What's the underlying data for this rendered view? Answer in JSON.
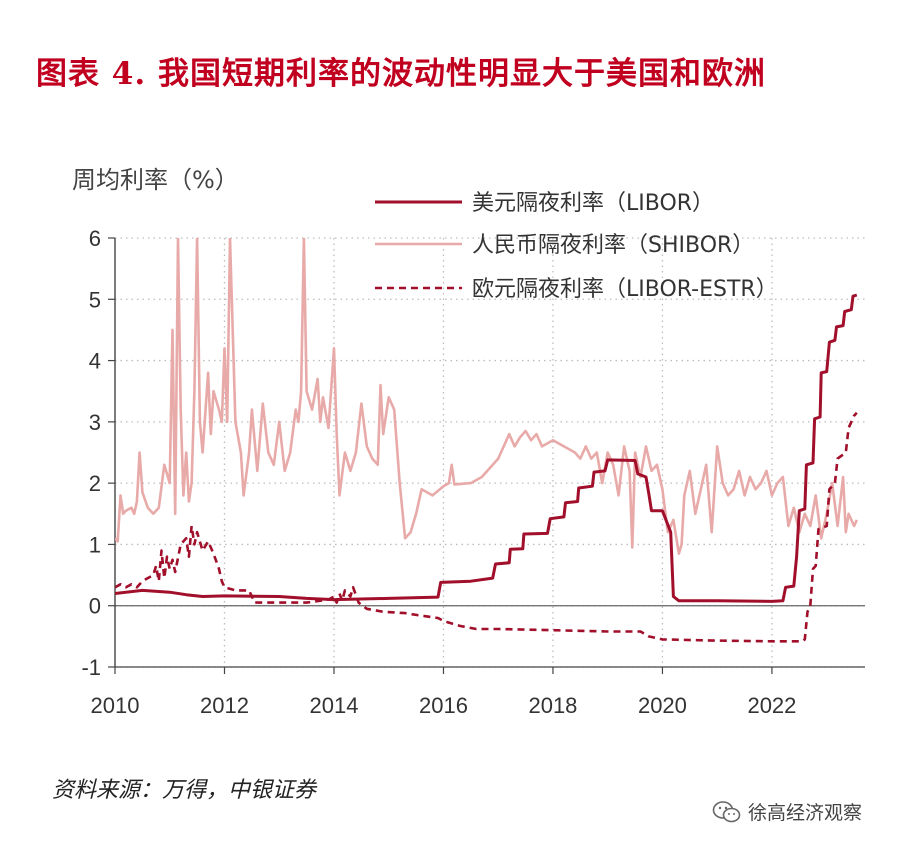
{
  "header": {
    "title": "图表 4. 我国短期利率的波动性明显大于美国和欧洲"
  },
  "footer": {
    "source": "资料来源：万得，中银证券",
    "watermark": "徐高经济观察"
  },
  "colors": {
    "title": "#c0001e",
    "usd": "#a10f2b",
    "shibor": "#e8aaa8",
    "eur": "#a10f2b",
    "grid": "#bdbdbd"
  },
  "chart_data": {
    "type": "line",
    "title": "",
    "ylabel": "周均利率（%）",
    "xlabel": "",
    "xlim": [
      2010,
      2023.7
    ],
    "ylim": [
      -1,
      6
    ],
    "x_ticks": [
      "2010",
      "2012",
      "2014",
      "2016",
      "2018",
      "2020",
      "2022"
    ],
    "y_ticks": [
      "-1",
      "0",
      "1",
      "2",
      "3",
      "4",
      "5",
      "6"
    ],
    "grid": "dotted",
    "legend_position": "top-right",
    "series": [
      {
        "name": "美元隔夜利率（LIBOR）",
        "style": "solid",
        "points": [
          [
            2010.0,
            0.2
          ],
          [
            2010.5,
            0.25
          ],
          [
            2011.0,
            0.22
          ],
          [
            2011.3,
            0.18
          ],
          [
            2011.6,
            0.15
          ],
          [
            2012.0,
            0.16
          ],
          [
            2013.0,
            0.15
          ],
          [
            2013.5,
            0.12
          ],
          [
            2014.0,
            0.1
          ],
          [
            2015.0,
            0.12
          ],
          [
            2015.9,
            0.14
          ],
          [
            2015.95,
            0.38
          ],
          [
            2016.5,
            0.4
          ],
          [
            2016.9,
            0.45
          ],
          [
            2016.95,
            0.68
          ],
          [
            2017.2,
            0.7
          ],
          [
            2017.22,
            0.92
          ],
          [
            2017.45,
            0.93
          ],
          [
            2017.47,
            1.17
          ],
          [
            2017.9,
            1.18
          ],
          [
            2017.95,
            1.42
          ],
          [
            2018.2,
            1.45
          ],
          [
            2018.23,
            1.68
          ],
          [
            2018.45,
            1.7
          ],
          [
            2018.47,
            1.92
          ],
          [
            2018.72,
            1.95
          ],
          [
            2018.75,
            2.18
          ],
          [
            2018.95,
            2.2
          ],
          [
            2019.0,
            2.38
          ],
          [
            2019.5,
            2.37
          ],
          [
            2019.55,
            2.15
          ],
          [
            2019.7,
            2.1
          ],
          [
            2019.75,
            1.83
          ],
          [
            2019.8,
            1.55
          ],
          [
            2020.0,
            1.55
          ],
          [
            2020.15,
            1.2
          ],
          [
            2020.2,
            0.15
          ],
          [
            2020.3,
            0.08
          ],
          [
            2021.0,
            0.08
          ],
          [
            2022.0,
            0.07
          ],
          [
            2022.2,
            0.08
          ],
          [
            2022.25,
            0.3
          ],
          [
            2022.4,
            0.32
          ],
          [
            2022.45,
            0.8
          ],
          [
            2022.5,
            1.55
          ],
          [
            2022.6,
            1.58
          ],
          [
            2022.63,
            2.3
          ],
          [
            2022.75,
            2.33
          ],
          [
            2022.78,
            3.05
          ],
          [
            2022.88,
            3.08
          ],
          [
            2022.9,
            3.8
          ],
          [
            2023.0,
            3.82
          ],
          [
            2023.05,
            4.3
          ],
          [
            2023.15,
            4.33
          ],
          [
            2023.18,
            4.55
          ],
          [
            2023.3,
            4.57
          ],
          [
            2023.33,
            4.8
          ],
          [
            2023.45,
            4.83
          ],
          [
            2023.48,
            5.05
          ],
          [
            2023.55,
            5.07
          ]
        ]
      },
      {
        "name": "人民币隔夜利率（SHIBOR）",
        "style": "solid",
        "points": [
          [
            2010.0,
            1.1
          ],
          [
            2010.05,
            1.05
          ],
          [
            2010.1,
            1.8
          ],
          [
            2010.15,
            1.5
          ],
          [
            2010.2,
            1.55
          ],
          [
            2010.3,
            1.6
          ],
          [
            2010.35,
            1.5
          ],
          [
            2010.4,
            1.7
          ],
          [
            2010.45,
            2.5
          ],
          [
            2010.5,
            1.85
          ],
          [
            2010.6,
            1.6
          ],
          [
            2010.7,
            1.5
          ],
          [
            2010.8,
            1.6
          ],
          [
            2010.9,
            2.3
          ],
          [
            2011.0,
            2.0
          ],
          [
            2011.05,
            4.5
          ],
          [
            2011.1,
            1.5
          ],
          [
            2011.15,
            6.0
          ],
          [
            2011.2,
            3.2
          ],
          [
            2011.25,
            1.8
          ],
          [
            2011.3,
            2.5
          ],
          [
            2011.35,
            1.7
          ],
          [
            2011.4,
            2.0
          ],
          [
            2011.45,
            3.5
          ],
          [
            2011.5,
            6.0
          ],
          [
            2011.55,
            3.0
          ],
          [
            2011.6,
            2.5
          ],
          [
            2011.7,
            3.8
          ],
          [
            2011.75,
            2.8
          ],
          [
            2011.8,
            3.5
          ],
          [
            2011.9,
            3.2
          ],
          [
            2011.95,
            3.0
          ],
          [
            2012.0,
            4.2
          ],
          [
            2012.05,
            3.0
          ],
          [
            2012.1,
            6.0
          ],
          [
            2012.15,
            4.5
          ],
          [
            2012.2,
            3.0
          ],
          [
            2012.3,
            2.5
          ],
          [
            2012.35,
            1.8
          ],
          [
            2012.45,
            2.5
          ],
          [
            2012.5,
            3.2
          ],
          [
            2012.6,
            2.2
          ],
          [
            2012.7,
            3.3
          ],
          [
            2012.8,
            2.5
          ],
          [
            2012.9,
            2.3
          ],
          [
            2013.0,
            3.0
          ],
          [
            2013.1,
            2.2
          ],
          [
            2013.2,
            2.5
          ],
          [
            2013.3,
            3.2
          ],
          [
            2013.35,
            3.0
          ],
          [
            2013.4,
            3.5
          ],
          [
            2013.45,
            6.0
          ],
          [
            2013.5,
            3.5
          ],
          [
            2013.6,
            3.2
          ],
          [
            2013.7,
            3.7
          ],
          [
            2013.75,
            3.0
          ],
          [
            2013.8,
            3.4
          ],
          [
            2013.9,
            2.9
          ],
          [
            2014.0,
            4.2
          ],
          [
            2014.05,
            2.8
          ],
          [
            2014.1,
            1.8
          ],
          [
            2014.2,
            2.5
          ],
          [
            2014.3,
            2.2
          ],
          [
            2014.4,
            2.5
          ],
          [
            2014.5,
            3.3
          ],
          [
            2014.6,
            2.6
          ],
          [
            2014.7,
            2.4
          ],
          [
            2014.8,
            2.3
          ],
          [
            2014.85,
            3.6
          ],
          [
            2014.9,
            2.8
          ],
          [
            2015.0,
            3.4
          ],
          [
            2015.1,
            3.2
          ],
          [
            2015.2,
            2.0
          ],
          [
            2015.3,
            1.1
          ],
          [
            2015.4,
            1.2
          ],
          [
            2015.5,
            1.5
          ],
          [
            2015.6,
            1.9
          ],
          [
            2015.7,
            1.85
          ],
          [
            2015.8,
            1.8
          ],
          [
            2016.0,
            1.95
          ],
          [
            2016.1,
            2.0
          ],
          [
            2016.15,
            2.3
          ],
          [
            2016.2,
            1.98
          ],
          [
            2016.5,
            2.0
          ],
          [
            2016.7,
            2.1
          ],
          [
            2016.8,
            2.2
          ],
          [
            2016.9,
            2.3
          ],
          [
            2017.0,
            2.4
          ],
          [
            2017.1,
            2.6
          ],
          [
            2017.2,
            2.8
          ],
          [
            2017.3,
            2.6
          ],
          [
            2017.4,
            2.75
          ],
          [
            2017.5,
            2.85
          ],
          [
            2017.6,
            2.7
          ],
          [
            2017.7,
            2.8
          ],
          [
            2017.8,
            2.6
          ],
          [
            2018.0,
            2.7
          ],
          [
            2018.2,
            2.6
          ],
          [
            2018.4,
            2.5
          ],
          [
            2018.5,
            2.4
          ],
          [
            2018.6,
            2.6
          ],
          [
            2018.7,
            2.4
          ],
          [
            2018.8,
            2.5
          ],
          [
            2018.9,
            2.0
          ],
          [
            2019.0,
            2.5
          ],
          [
            2019.1,
            2.3
          ],
          [
            2019.2,
            1.8
          ],
          [
            2019.3,
            2.6
          ],
          [
            2019.4,
            2.2
          ],
          [
            2019.45,
            0.95
          ],
          [
            2019.5,
            2.5
          ],
          [
            2019.6,
            2.1
          ],
          [
            2019.7,
            2.6
          ],
          [
            2019.8,
            2.2
          ],
          [
            2019.9,
            2.3
          ],
          [
            2020.0,
            1.9
          ],
          [
            2020.1,
            1.2
          ],
          [
            2020.2,
            1.4
          ],
          [
            2020.3,
            0.85
          ],
          [
            2020.35,
            1.0
          ],
          [
            2020.4,
            1.8
          ],
          [
            2020.5,
            2.2
          ],
          [
            2020.6,
            1.5
          ],
          [
            2020.7,
            1.9
          ],
          [
            2020.8,
            2.3
          ],
          [
            2020.9,
            1.2
          ],
          [
            2021.0,
            2.6
          ],
          [
            2021.1,
            2.0
          ],
          [
            2021.2,
            1.8
          ],
          [
            2021.3,
            1.9
          ],
          [
            2021.4,
            2.2
          ],
          [
            2021.5,
            1.8
          ],
          [
            2021.6,
            2.1
          ],
          [
            2021.7,
            1.9
          ],
          [
            2021.8,
            2.0
          ],
          [
            2021.9,
            2.2
          ],
          [
            2022.0,
            1.8
          ],
          [
            2022.1,
            2.0
          ],
          [
            2022.2,
            2.1
          ],
          [
            2022.3,
            1.3
          ],
          [
            2022.4,
            1.6
          ],
          [
            2022.5,
            1.2
          ],
          [
            2022.6,
            1.5
          ],
          [
            2022.7,
            1.3
          ],
          [
            2022.8,
            1.8
          ],
          [
            2022.9,
            1.1
          ],
          [
            2023.0,
            1.5
          ],
          [
            2023.1,
            2.0
          ],
          [
            2023.2,
            1.3
          ],
          [
            2023.3,
            2.1
          ],
          [
            2023.35,
            1.2
          ],
          [
            2023.4,
            1.5
          ],
          [
            2023.5,
            1.3
          ],
          [
            2023.55,
            1.4
          ]
        ]
      },
      {
        "name": "欧元隔夜利率（LIBOR-ESTR）",
        "style": "dashed",
        "points": [
          [
            2010.0,
            0.3
          ],
          [
            2010.1,
            0.35
          ],
          [
            2010.2,
            0.3
          ],
          [
            2010.3,
            0.35
          ],
          [
            2010.4,
            0.3
          ],
          [
            2010.5,
            0.4
          ],
          [
            2010.6,
            0.45
          ],
          [
            2010.7,
            0.5
          ],
          [
            2010.75,
            0.65
          ],
          [
            2010.8,
            0.4
          ],
          [
            2010.85,
            0.9
          ],
          [
            2010.9,
            0.45
          ],
          [
            2010.95,
            0.8
          ],
          [
            2011.0,
            0.6
          ],
          [
            2011.05,
            0.75
          ],
          [
            2011.1,
            0.55
          ],
          [
            2011.2,
            1.0
          ],
          [
            2011.3,
            1.1
          ],
          [
            2011.35,
            0.8
          ],
          [
            2011.4,
            1.3
          ],
          [
            2011.45,
            1.0
          ],
          [
            2011.5,
            1.2
          ],
          [
            2011.6,
            0.9
          ],
          [
            2011.7,
            1.05
          ],
          [
            2011.8,
            0.85
          ],
          [
            2011.9,
            0.6
          ],
          [
            2011.95,
            0.4
          ],
          [
            2012.0,
            0.3
          ],
          [
            2012.2,
            0.25
          ],
          [
            2012.45,
            0.25
          ],
          [
            2012.55,
            0.05
          ],
          [
            2013.0,
            0.05
          ],
          [
            2013.5,
            0.05
          ],
          [
            2013.9,
            0.1
          ],
          [
            2014.0,
            0.15
          ],
          [
            2014.05,
            0.05
          ],
          [
            2014.1,
            0.2
          ],
          [
            2014.15,
            0.08
          ],
          [
            2014.2,
            0.25
          ],
          [
            2014.3,
            0.15
          ],
          [
            2014.35,
            0.3
          ],
          [
            2014.45,
            0.05
          ],
          [
            2014.6,
            -0.05
          ],
          [
            2014.9,
            -0.1
          ],
          [
            2015.3,
            -0.12
          ],
          [
            2015.5,
            -0.15
          ],
          [
            2015.9,
            -0.2
          ],
          [
            2016.0,
            -0.25
          ],
          [
            2016.3,
            -0.33
          ],
          [
            2016.6,
            -0.38
          ],
          [
            2017.0,
            -0.38
          ],
          [
            2018.0,
            -0.4
          ],
          [
            2019.0,
            -0.42
          ],
          [
            2019.6,
            -0.42
          ],
          [
            2019.75,
            -0.5
          ],
          [
            2020.0,
            -0.55
          ],
          [
            2021.0,
            -0.57
          ],
          [
            2022.0,
            -0.58
          ],
          [
            2022.55,
            -0.58
          ],
          [
            2022.6,
            -0.55
          ],
          [
            2022.65,
            -0.1
          ],
          [
            2022.7,
            0.0
          ],
          [
            2022.75,
            0.6
          ],
          [
            2022.8,
            0.65
          ],
          [
            2022.85,
            1.25
          ],
          [
            2023.0,
            1.3
          ],
          [
            2023.05,
            1.9
          ],
          [
            2023.15,
            2.0
          ],
          [
            2023.2,
            2.4
          ],
          [
            2023.35,
            2.5
          ],
          [
            2023.4,
            2.9
          ],
          [
            2023.5,
            3.1
          ],
          [
            2023.55,
            3.15
          ]
        ]
      }
    ]
  }
}
